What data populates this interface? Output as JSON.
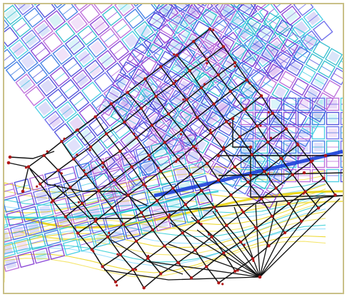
{
  "map": {
    "kind": "street-network-plan",
    "background_color": "#ffffff",
    "frame_color": "#c9c088",
    "street_grid_colors": [
      "#3b3bd6",
      "#5a5ae8",
      "#7b2fd0",
      "#1fb7c9",
      "#36c9e0",
      "#b45cd6",
      "#2c6fe0"
    ],
    "terrain_colors": [
      "#e8d000",
      "#f2e04a",
      "#1fc9d0",
      "#7fd8ff"
    ],
    "network_line_color": "#111111",
    "node_color": "#b01818",
    "river_color": "#1c3fd8",
    "labels": []
  }
}
